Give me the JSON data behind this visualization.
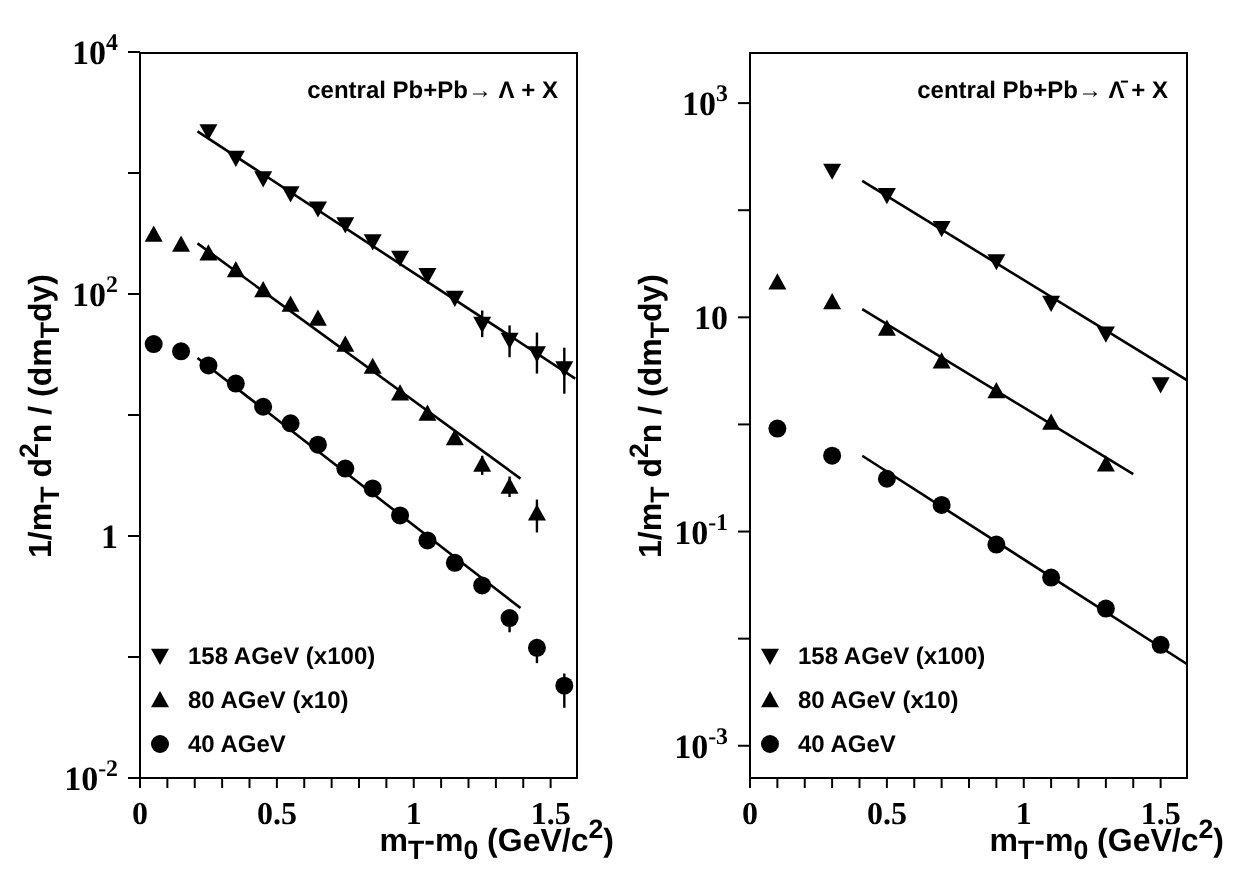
{
  "chart_data": [
    {
      "type": "scatter",
      "annotations": [
        "central Pb+Pb→ Λ + X"
      ],
      "xlabel": "m$_{T}$-m$_{0}$ (GeV/c$^{2}$)",
      "ylabel": "1/m$_{T}$ d$^{2}$n / (dm$_{T}$dy)",
      "log": "y",
      "legend": "bottom left",
      "xlim": [
        0,
        1.6
      ],
      "xticks": [
        0,
        {
          "value": 0.1,
          "label": null
        },
        {
          "value": 0.2,
          "label": null
        },
        {
          "value": 0.3,
          "label": null
        },
        {
          "value": 0.4,
          "label": null
        },
        0.5,
        {
          "value": 0.6,
          "label": null
        },
        {
          "value": 0.7,
          "label": null
        },
        {
          "value": 0.8,
          "label": null
        },
        {
          "value": 0.9,
          "label": null
        },
        1,
        {
          "value": 1.1,
          "label": null
        },
        {
          "value": 1.2,
          "label": null
        },
        {
          "value": 1.3,
          "label": null
        },
        {
          "value": 1.4,
          "label": null
        },
        1.5
      ],
      "ylim": [
        0.01,
        10000
      ],
      "yticks": [
        {
          "value": 0.01,
          "label": "10$^{-2}$"
        },
        {
          "value": 0.1,
          "label": null
        },
        1,
        {
          "value": 10,
          "label": null
        },
        {
          "value": 100,
          "label": "10$^{2}$"
        },
        {
          "value": 1000,
          "label": null
        },
        {
          "value": 10000,
          "label": "10$^{4}$"
        }
      ],
      "series": [
        {
          "name": "158 AGeV (x100)",
          "color": "#000000",
          "marker": "triangle_down",
          "x": [
            0.25,
            0.35,
            0.45,
            0.55,
            0.65,
            0.75,
            0.85,
            0.95,
            1.05,
            1.15,
            1.25,
            1.35,
            1.45,
            1.55
          ],
          "values": [
            2210,
            1330,
            900,
            678,
            508,
            375,
            272,
            199,
            143,
            92.7,
            56.5,
            41.7,
            32.3,
            24.2
          ],
          "errors": [
            null,
            null,
            null,
            null,
            null,
            null,
            null,
            null,
            null,
            null,
            [
              44,
              73
            ],
            [
              30,
              55
            ],
            [
              22,
              48
            ],
            [
              15,
              36
            ]
          ]
        },
        {
          "name": "80 AGeV (x10)",
          "color": "#000000",
          "marker": "triangle",
          "x": [
            0.05,
            0.15,
            0.25,
            0.35,
            0.45,
            0.55,
            0.65,
            0.75,
            0.85,
            0.95,
            1.05,
            1.15,
            1.25,
            1.35,
            1.45
          ],
          "values": [
            310,
            256,
            217,
            158,
            108,
            81.7,
            62.6,
            38.2,
            25.1,
            15.1,
            10.3,
            6.46,
            3.89,
            2.56,
            1.54
          ],
          "errors": [
            null,
            null,
            null,
            null,
            null,
            null,
            null,
            null,
            null,
            null,
            null,
            null,
            [
              3.2,
              4.6
            ],
            [
              2.1,
              3.1
            ],
            [
              1.07,
              2.0
            ]
          ]
        },
        {
          "name": "40 AGeV",
          "color": "#000000",
          "marker": "circle",
          "x": [
            0.05,
            0.15,
            0.25,
            0.35,
            0.45,
            0.55,
            0.65,
            0.75,
            0.85,
            0.95,
            1.05,
            1.15,
            1.25,
            1.35,
            1.45,
            1.55
          ],
          "values": [
            38.6,
            33.6,
            25.7,
            18.2,
            11.7,
            8.53,
            5.69,
            3.61,
            2.47,
            1.48,
            0.92,
            0.6,
            0.39,
            0.21,
            0.119,
            0.058
          ],
          "errors": [
            null,
            null,
            null,
            null,
            null,
            null,
            null,
            null,
            null,
            null,
            null,
            null,
            null,
            [
              0.16,
              0.245
            ],
            [
              0.089,
              0.141
            ],
            [
              0.038,
              0.073
            ]
          ]
        },
        {
          "type": "line",
          "color": "#000000",
          "marker": "none",
          "x": [
            0.21,
            1.59
          ],
          "values": [
            2210,
            20
          ]
        },
        {
          "type": "line",
          "color": "#000000",
          "marker": "none",
          "x": [
            0.21,
            1.39
          ],
          "values": [
            262,
            2.98
          ]
        },
        {
          "type": "line",
          "color": "#000000",
          "marker": "none",
          "x": [
            0.21,
            1.39
          ],
          "values": [
            29.6,
            0.254
          ]
        }
      ]
    },
    {
      "type": "scatter",
      "annotations": [
        "central Pb+Pb→ Λ̄ + X"
      ],
      "xlabel": "m$_{T}$-m$_{0}$ (GeV/c$^{2}$)",
      "ylabel": "1/m$_{T}$ d$^{2}$n / (dm$_{T}$dy)",
      "log": "y",
      "legend": "bottom left",
      "xlim": [
        0,
        1.6
      ],
      "xticks": [
        0,
        {
          "value": 0.1,
          "label": null
        },
        {
          "value": 0.2,
          "label": null
        },
        {
          "value": 0.3,
          "label": null
        },
        {
          "value": 0.4,
          "label": null
        },
        0.5,
        {
          "value": 0.6,
          "label": null
        },
        {
          "value": 0.7,
          "label": null
        },
        {
          "value": 0.8,
          "label": null
        },
        {
          "value": 0.9,
          "label": null
        },
        1,
        {
          "value": 1.1,
          "label": null
        },
        {
          "value": 1.2,
          "label": null
        },
        {
          "value": 1.3,
          "label": null
        },
        {
          "value": 1.4,
          "label": null
        },
        1.5
      ],
      "ylim": [
        0.0005,
        3000
      ],
      "yticks": [
        {
          "value": 0.001,
          "label": "10$^{-3}$"
        },
        {
          "value": 0.01,
          "label": null
        },
        {
          "value": 0.1,
          "label": "10$^{-1}$"
        },
        {
          "value": 1,
          "label": null
        },
        10,
        {
          "value": 100,
          "label": null
        },
        {
          "value": 1000,
          "label": "10$^{3}$"
        }
      ],
      "series": [
        {
          "name": "158 AGeV (x100)",
          "color": "#000000",
          "marker": "triangle_down",
          "x": [
            0.3,
            0.5,
            0.7,
            0.9,
            1.1,
            1.3,
            1.5
          ],
          "values": [
            233,
            138,
            67.8,
            33.3,
            13.6,
            7.04,
            2.36
          ]
        },
        {
          "name": "80 AGeV (x10)",
          "color": "#000000",
          "marker": "triangle",
          "x": [
            0.1,
            0.3,
            0.5,
            0.7,
            0.9,
            1.1,
            1.3
          ],
          "values": [
            21.2,
            13.9,
            7.87,
            3.88,
            2.05,
            1.04,
            0.425
          ]
        },
        {
          "name": "40 AGeV",
          "color": "#000000",
          "marker": "circle",
          "x": [
            0.1,
            0.3,
            0.5,
            0.7,
            0.9,
            1.1,
            1.3,
            1.5
          ],
          "values": [
            0.914,
            0.511,
            0.311,
            0.177,
            0.0755,
            0.0372,
            0.0191,
            0.00875
          ]
        },
        {
          "type": "line",
          "color": "#000000",
          "marker": "none",
          "x": [
            0.41,
            1.6
          ],
          "values": [
            188,
            2.55
          ]
        },
        {
          "type": "line",
          "color": "#000000",
          "marker": "none",
          "x": [
            0.41,
            1.4
          ],
          "values": [
            11.9,
            0.344
          ]
        },
        {
          "type": "line",
          "color": "#000000",
          "marker": "none",
          "x": [
            0.41,
            1.6
          ],
          "values": [
            0.51,
            0.00571
          ]
        }
      ]
    }
  ]
}
